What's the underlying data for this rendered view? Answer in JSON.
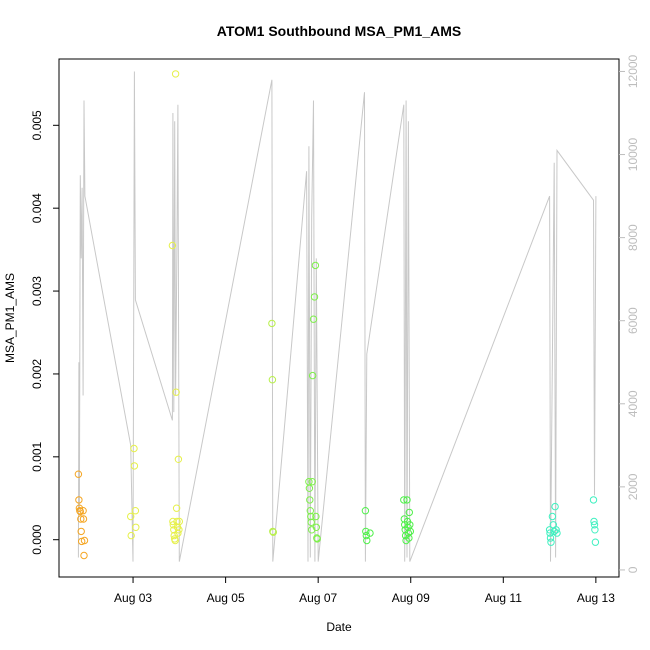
{
  "chart_data": {
    "type": "scatter",
    "title": "ATOM1 Southbound MSA_PM1_AMS",
    "xlabel": "Date",
    "ylabel": "MSA_PM1_AMS",
    "x_ticks": [
      "Aug 03",
      "Aug 05",
      "Aug 07",
      "Aug 09",
      "Aug 11",
      "Aug 13"
    ],
    "x_tick_day": [
      3,
      5,
      7,
      9,
      11,
      13
    ],
    "xlim": [
      1.4,
      13.5
    ],
    "y_ticks": [
      "0.000",
      "0.001",
      "0.002",
      "0.003",
      "0.004",
      "0.005"
    ],
    "y_tick_values": [
      0,
      0.001,
      0.002,
      0.003,
      0.004,
      0.005
    ],
    "ylim": [
      -0.00045,
      0.0058
    ],
    "y2_ticks": [
      "0",
      "2000",
      "4000",
      "6000",
      "8000",
      "10000",
      "12000"
    ],
    "y2_tick_values": [
      0,
      2000,
      4000,
      6000,
      8000,
      10000,
      12000
    ],
    "y2lim": [
      -170,
      12300
    ],
    "grid": false,
    "colors": {
      "points_start": "#f5a623",
      "points_mid": "#e6f04a",
      "points_green": "#4ff04a",
      "points_end": "#3ff0c0",
      "secondary_line": "#c8c8c8",
      "axis": "#000000"
    },
    "points": [
      {
        "day": 1.82,
        "v": 0.00079,
        "c": "#f5a623"
      },
      {
        "day": 1.83,
        "v": 0.00048,
        "c": "#f5a623"
      },
      {
        "day": 1.84,
        "v": 0.00038,
        "c": "#f5a623"
      },
      {
        "day": 1.85,
        "v": 0.00035,
        "c": "#f5a623"
      },
      {
        "day": 1.86,
        "v": 0.00034,
        "c": "#f5a623"
      },
      {
        "day": 1.87,
        "v": 0.00025,
        "c": "#f5a623"
      },
      {
        "day": 1.88,
        "v": 0.0001,
        "c": "#f5a623"
      },
      {
        "day": 1.89,
        "v": -2e-05,
        "c": "#f5a623"
      },
      {
        "day": 1.92,
        "v": 0.00035,
        "c": "#f5a623"
      },
      {
        "day": 1.93,
        "v": 0.00025,
        "c": "#f5a623"
      },
      {
        "day": 1.94,
        "v": -0.00019,
        "c": "#f5a623"
      },
      {
        "day": 1.95,
        "v": -1e-05,
        "c": "#f5a623"
      },
      {
        "day": 2.95,
        "v": 0.00028,
        "c": "#e6f04a"
      },
      {
        "day": 2.96,
        "v": 5e-05,
        "c": "#e6f04a"
      },
      {
        "day": 3.02,
        "v": 0.0011,
        "c": "#e6f04a"
      },
      {
        "day": 3.03,
        "v": 0.00089,
        "c": "#e6f04a"
      },
      {
        "day": 3.05,
        "v": 0.00035,
        "c": "#e6f04a"
      },
      {
        "day": 3.06,
        "v": 0.00015,
        "c": "#e6f04a"
      },
      {
        "day": 3.85,
        "v": 0.00355,
        "c": "#e6f04a"
      },
      {
        "day": 3.86,
        "v": 0.00022,
        "c": "#e6f04a"
      },
      {
        "day": 3.87,
        "v": 0.00018,
        "c": "#e6f04a"
      },
      {
        "day": 3.88,
        "v": 0.00012,
        "c": "#e6f04a"
      },
      {
        "day": 3.89,
        "v": 5e-05,
        "c": "#e6f04a"
      },
      {
        "day": 3.9,
        "v": 1e-05,
        "c": "#e6f04a"
      },
      {
        "day": 3.91,
        "v": -1e-05,
        "c": "#e6f04a"
      },
      {
        "day": 3.92,
        "v": 0.00562,
        "c": "#e6f04a"
      },
      {
        "day": 3.93,
        "v": 0.00178,
        "c": "#e6f04a"
      },
      {
        "day": 3.94,
        "v": 0.00038,
        "c": "#e6f04a"
      },
      {
        "day": 3.95,
        "v": 0.00022,
        "c": "#e6f04a"
      },
      {
        "day": 3.96,
        "v": 0.00015,
        "c": "#e6f04a"
      },
      {
        "day": 3.97,
        "v": 8e-05,
        "c": "#e6f04a"
      },
      {
        "day": 3.98,
        "v": 0.00097,
        "c": "#e6f04a"
      },
      {
        "day": 3.99,
        "v": 0.00012,
        "c": "#e6f04a"
      },
      {
        "day": 4.0,
        "v": 0.00022,
        "c": "#e6f04a"
      },
      {
        "day": 6.0,
        "v": 0.00261,
        "c": "#b8f04a"
      },
      {
        "day": 6.01,
        "v": 0.00193,
        "c": "#b8f04a"
      },
      {
        "day": 6.02,
        "v": 0.0001,
        "c": "#b8f04a"
      },
      {
        "day": 6.03,
        "v": 9e-05,
        "c": "#b8f04a"
      },
      {
        "day": 6.8,
        "v": 0.0007,
        "c": "#7ef04a"
      },
      {
        "day": 6.81,
        "v": 0.00062,
        "c": "#7ef04a"
      },
      {
        "day": 6.82,
        "v": 0.00048,
        "c": "#7ef04a"
      },
      {
        "day": 6.83,
        "v": 0.00035,
        "c": "#7ef04a"
      },
      {
        "day": 6.84,
        "v": 0.00028,
        "c": "#7ef04a"
      },
      {
        "day": 6.85,
        "v": 0.00021,
        "c": "#7ef04a"
      },
      {
        "day": 6.86,
        "v": 0.00012,
        "c": "#7ef04a"
      },
      {
        "day": 6.87,
        "v": 0.0007,
        "c": "#7ef04a"
      },
      {
        "day": 6.88,
        "v": 0.00198,
        "c": "#7ef04a"
      },
      {
        "day": 6.9,
        "v": 0.00266,
        "c": "#7ef04a"
      },
      {
        "day": 6.92,
        "v": 0.00293,
        "c": "#7ef04a"
      },
      {
        "day": 6.94,
        "v": 0.00331,
        "c": "#7ef04a"
      },
      {
        "day": 6.95,
        "v": 0.00028,
        "c": "#7ef04a"
      },
      {
        "day": 6.96,
        "v": 0.00015,
        "c": "#7ef04a"
      },
      {
        "day": 6.97,
        "v": 2e-05,
        "c": "#7ef04a"
      },
      {
        "day": 6.98,
        "v": 1e-05,
        "c": "#7ef04a"
      },
      {
        "day": 8.02,
        "v": 0.00035,
        "c": "#4ff04a"
      },
      {
        "day": 8.03,
        "v": 0.0001,
        "c": "#4ff04a"
      },
      {
        "day": 8.04,
        "v": 5e-05,
        "c": "#4ff04a"
      },
      {
        "day": 8.05,
        "v": -1e-05,
        "c": "#4ff04a"
      },
      {
        "day": 8.12,
        "v": 8e-05,
        "c": "#4ff04a"
      },
      {
        "day": 8.85,
        "v": 0.00048,
        "c": "#4ff04a"
      },
      {
        "day": 8.86,
        "v": 0.00025,
        "c": "#4ff04a"
      },
      {
        "day": 8.87,
        "v": 0.00018,
        "c": "#4ff04a"
      },
      {
        "day": 8.88,
        "v": 0.00012,
        "c": "#4ff04a"
      },
      {
        "day": 8.89,
        "v": 5e-05,
        "c": "#4ff04a"
      },
      {
        "day": 8.9,
        "v": -1e-05,
        "c": "#4ff04a"
      },
      {
        "day": 8.92,
        "v": 0.00048,
        "c": "#4ff04a"
      },
      {
        "day": 8.93,
        "v": 0.00022,
        "c": "#4ff04a"
      },
      {
        "day": 8.94,
        "v": 0.00015,
        "c": "#4ff04a"
      },
      {
        "day": 8.95,
        "v": 8e-05,
        "c": "#4ff04a"
      },
      {
        "day": 8.96,
        "v": 2e-05,
        "c": "#4ff04a"
      },
      {
        "day": 8.97,
        "v": 0.00033,
        "c": "#4ff04a"
      },
      {
        "day": 8.98,
        "v": 0.00018,
        "c": "#4ff04a"
      },
      {
        "day": 8.99,
        "v": 0.0001,
        "c": "#4ff04a"
      },
      {
        "day": 12.0,
        "v": 0.00012,
        "c": "#3ff0c0"
      },
      {
        "day": 12.01,
        "v": 8e-05,
        "c": "#3ff0c0"
      },
      {
        "day": 12.02,
        "v": 2e-05,
        "c": "#3ff0c0"
      },
      {
        "day": 12.03,
        "v": -3e-05,
        "c": "#3ff0c0"
      },
      {
        "day": 12.06,
        "v": 0.00028,
        "c": "#3ff0c0"
      },
      {
        "day": 12.08,
        "v": 0.00018,
        "c": "#3ff0c0"
      },
      {
        "day": 12.1,
        "v": 0.0001,
        "c": "#3ff0c0"
      },
      {
        "day": 12.12,
        "v": 0.0004,
        "c": "#3ff0c0"
      },
      {
        "day": 12.14,
        "v": 0.00012,
        "c": "#3ff0c0"
      },
      {
        "day": 12.16,
        "v": 8e-05,
        "c": "#3ff0c0"
      },
      {
        "day": 12.95,
        "v": 0.00048,
        "c": "#3ff0c0"
      },
      {
        "day": 12.96,
        "v": 0.00022,
        "c": "#3ff0c0"
      },
      {
        "day": 12.97,
        "v": 0.00018,
        "c": "#3ff0c0"
      },
      {
        "day": 12.98,
        "v": 0.00012,
        "c": "#3ff0c0"
      },
      {
        "day": 12.99,
        "v": -3e-05,
        "c": "#3ff0c0"
      }
    ],
    "secondary_series": [
      {
        "day": 1.82,
        "y2": 300
      },
      {
        "day": 1.83,
        "y2": 5000
      },
      {
        "day": 1.84,
        "y2": 1500
      },
      {
        "day": 1.86,
        "y2": 9500
      },
      {
        "day": 1.88,
        "y2": 7500
      },
      {
        "day": 1.9,
        "y2": 9200
      },
      {
        "day": 1.92,
        "y2": 4200
      },
      {
        "day": 1.94,
        "y2": 11300
      },
      {
        "day": 1.96,
        "y2": 9000
      },
      {
        "day": 2.95,
        "y2": 3000
      },
      {
        "day": 3.0,
        "y2": 200
      },
      {
        "day": 3.03,
        "y2": 12000
      },
      {
        "day": 3.05,
        "y2": 6500
      },
      {
        "day": 3.85,
        "y2": 3600
      },
      {
        "day": 3.86,
        "y2": 11000
      },
      {
        "day": 3.88,
        "y2": 3800
      },
      {
        "day": 3.9,
        "y2": 10800
      },
      {
        "day": 3.92,
        "y2": 4200
      },
      {
        "day": 3.95,
        "y2": 8000
      },
      {
        "day": 3.97,
        "y2": 11200
      },
      {
        "day": 4.0,
        "y2": 200
      },
      {
        "day": 6.0,
        "y2": 11800
      },
      {
        "day": 6.02,
        "y2": 200
      },
      {
        "day": 6.75,
        "y2": 9600
      },
      {
        "day": 6.78,
        "y2": 200
      },
      {
        "day": 6.8,
        "y2": 10200
      },
      {
        "day": 6.83,
        "y2": 300
      },
      {
        "day": 6.86,
        "y2": 8500
      },
      {
        "day": 6.9,
        "y2": 11300
      },
      {
        "day": 6.93,
        "y2": 200
      },
      {
        "day": 6.96,
        "y2": 7500
      },
      {
        "day": 7.0,
        "y2": 200
      },
      {
        "day": 8.0,
        "y2": 11500
      },
      {
        "day": 8.02,
        "y2": 200
      },
      {
        "day": 8.05,
        "y2": 5200
      },
      {
        "day": 8.85,
        "y2": 11200
      },
      {
        "day": 8.87,
        "y2": 200
      },
      {
        "day": 8.9,
        "y2": 11300
      },
      {
        "day": 8.92,
        "y2": 300
      },
      {
        "day": 8.95,
        "y2": 10800
      },
      {
        "day": 8.98,
        "y2": 200
      },
      {
        "day": 12.0,
        "y2": 9000
      },
      {
        "day": 12.02,
        "y2": 200
      },
      {
        "day": 12.1,
        "y2": 9800
      },
      {
        "day": 12.13,
        "y2": 300
      },
      {
        "day": 12.16,
        "y2": 10100
      },
      {
        "day": 12.95,
        "y2": 8900
      },
      {
        "day": 12.97,
        "y2": 1800
      },
      {
        "day": 13.0,
        "y2": 9000
      }
    ]
  }
}
